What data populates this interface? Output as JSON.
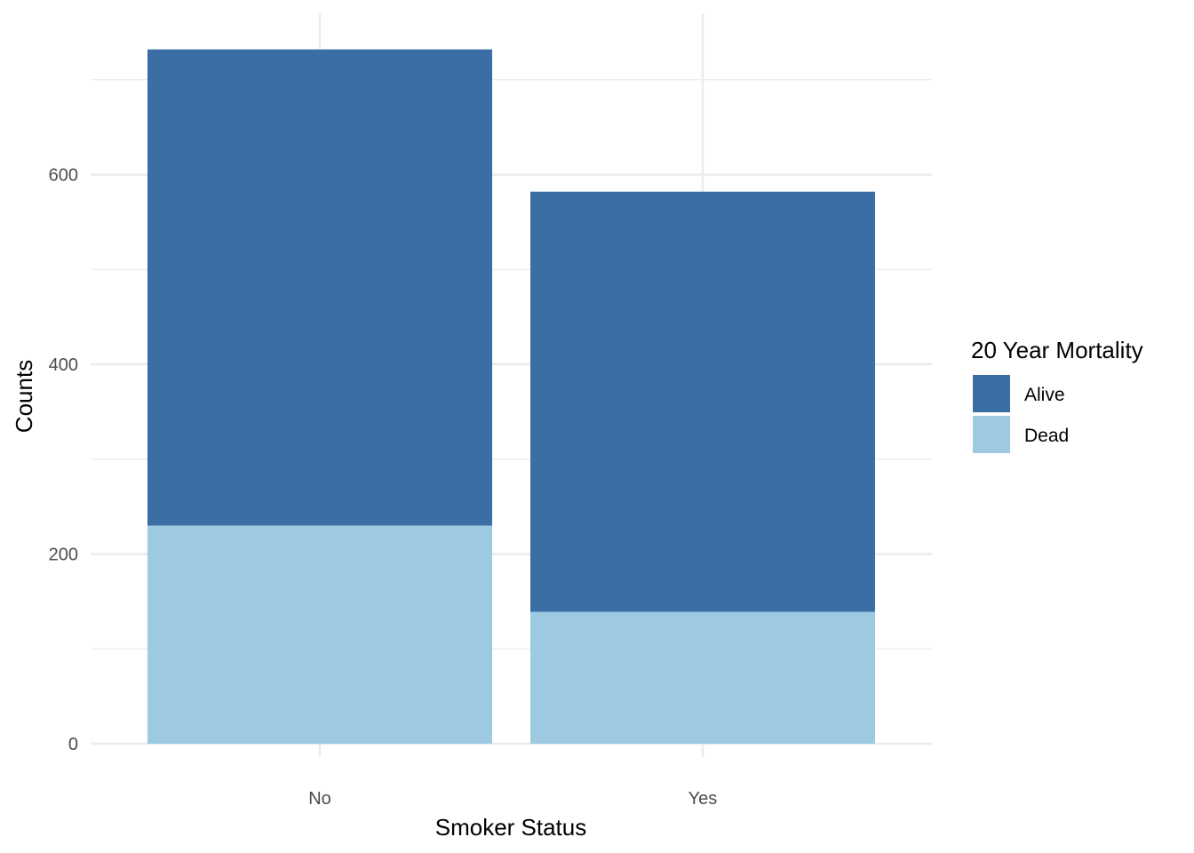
{
  "chart_data": {
    "type": "bar",
    "stacked": true,
    "title": "",
    "xlabel": "Smoker Status",
    "ylabel": "Counts",
    "categories": [
      "No",
      "Yes"
    ],
    "series": [
      {
        "name": "Dead",
        "values": [
          230,
          139
        ],
        "color": "#9ecae1"
      },
      {
        "name": "Alive",
        "values": [
          502,
          443
        ],
        "color": "#3a6ea5"
      }
    ],
    "ylim": [
      0,
      770
    ],
    "yticks": [
      0,
      200,
      400,
      600
    ],
    "grid": true,
    "legend": {
      "title": "20 Year Mortality",
      "placement": "right",
      "entries": [
        "Alive",
        "Dead"
      ]
    }
  }
}
